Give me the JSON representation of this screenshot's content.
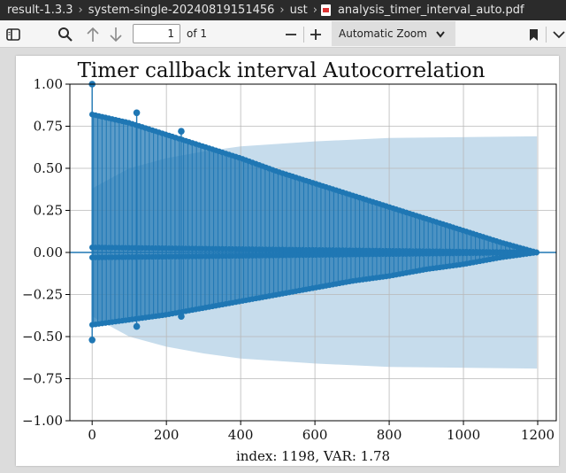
{
  "breadcrumb": {
    "items": [
      "result-1.3.3",
      "system-single-20240819151456",
      "ust",
      "analysis_timer_interval_auto.pdf"
    ]
  },
  "toolbar": {
    "page_number": "1",
    "page_count": "of 1",
    "zoom": "Automatic Zoom",
    "icons": [
      "sidebar-toggle-icon",
      "search-icon",
      "arrow-up-icon",
      "arrow-down-icon",
      "minus-icon",
      "plus-icon",
      "chevron-down-icon",
      "bookmark-icon",
      "more-icon"
    ]
  },
  "colors": {
    "series": "#1f77b4",
    "confidence_band": "#c6dcec",
    "breadcrumb_bg": "#2b2b2b"
  },
  "chart_data": {
    "type": "stem",
    "title": "Timer callback interval Autocorrelation",
    "xlabel": "index: 1198, VAR: 1.78",
    "ylabel": "",
    "xlim": [
      -60,
      1250
    ],
    "ylim": [
      -1.0,
      1.0
    ],
    "xticks": [
      "0",
      "200",
      "400",
      "600",
      "800",
      "1000",
      "1200"
    ],
    "yticks": [
      "1.00",
      "0.75",
      "0.50",
      "0.25",
      "0.00",
      "−0.25",
      "−0.50",
      "−0.75",
      "−1.00"
    ],
    "grid": true,
    "series": [
      {
        "points": [
          [
            0,
            1.0
          ],
          [
            0,
            -0.52
          ],
          [
            120,
            0.83
          ],
          [
            120,
            -0.44
          ],
          [
            240,
            0.72
          ],
          [
            240,
            -0.38
          ],
          [
            0,
            0.82
          ],
          [
            100,
            0.77
          ],
          [
            200,
            0.7
          ],
          [
            300,
            0.63
          ],
          [
            400,
            0.56
          ],
          [
            500,
            0.48
          ],
          [
            600,
            0.41
          ],
          [
            700,
            0.34
          ],
          [
            800,
            0.27
          ],
          [
            900,
            0.2
          ],
          [
            1000,
            0.13
          ],
          [
            1100,
            0.06
          ],
          [
            1198,
            0.0
          ],
          [
            0,
            -0.43
          ],
          [
            100,
            -0.4
          ],
          [
            200,
            -0.37
          ],
          [
            300,
            -0.33
          ],
          [
            400,
            -0.29
          ],
          [
            500,
            -0.25
          ],
          [
            600,
            -0.21
          ],
          [
            700,
            -0.17
          ],
          [
            800,
            -0.14
          ],
          [
            900,
            -0.1
          ],
          [
            1000,
            -0.07
          ],
          [
            1100,
            -0.03
          ],
          [
            1198,
            0.0
          ]
        ]
      }
    ],
    "confidence_band": [
      [
        0,
        0.38
      ],
      [
        100,
        0.5
      ],
      [
        200,
        0.56
      ],
      [
        300,
        0.6
      ],
      [
        400,
        0.63
      ],
      [
        600,
        0.66
      ],
      [
        800,
        0.68
      ],
      [
        1198,
        0.69
      ]
    ]
  }
}
